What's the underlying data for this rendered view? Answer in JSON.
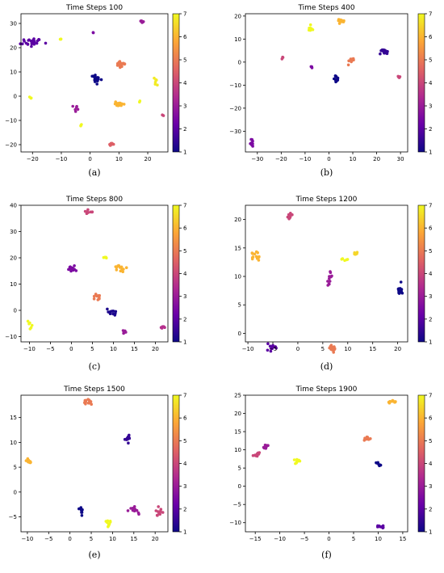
{
  "colormap": {
    "name": "plasma",
    "stops": [
      "#0d0887",
      "#6a00a8",
      "#b12a90",
      "#e16462",
      "#fca636",
      "#f0f921"
    ]
  },
  "chart_data": [
    {
      "type": "scatter",
      "title": "Time Steps 100",
      "caption": "(a)",
      "xlim": [
        -24,
        27
      ],
      "ylim": [
        -23,
        34
      ],
      "xticks": [
        -20,
        -10,
        0,
        10,
        20
      ],
      "yticks": [
        -20,
        -10,
        0,
        10,
        20,
        30
      ],
      "colorbar": {
        "min": 1,
        "max": 7,
        "ticks": [
          1,
          2,
          3,
          4,
          5,
          6,
          7
        ]
      },
      "clusters": [
        {
          "x": -20,
          "y": 22.5,
          "c": 2,
          "n": 26,
          "sx": 1.6,
          "sy": 1.0
        },
        {
          "x": 2,
          "y": 7,
          "c": 1,
          "n": 26,
          "sx": 1.0,
          "sy": 0.8
        },
        {
          "x": 10.5,
          "y": 13,
          "c": 5,
          "n": 22,
          "sx": 0.6,
          "sy": 0.6
        },
        {
          "x": 10,
          "y": -3,
          "c": 6,
          "n": 20,
          "sx": 0.9,
          "sy": 0.5
        },
        {
          "x": 7.5,
          "y": -19.5,
          "c": 4.5,
          "n": 8,
          "sx": 0.4,
          "sy": 0.3
        },
        {
          "x": 18,
          "y": 31,
          "c": 3,
          "n": 8,
          "sx": 0.5,
          "sy": 0.5
        },
        {
          "x": -10,
          "y": 23.5,
          "c": 7,
          "n": 3,
          "sx": 0.2,
          "sy": 0.2
        },
        {
          "x": 1.5,
          "y": 26.5,
          "c": 2.5,
          "n": 2,
          "sx": 0.2,
          "sy": 0.2
        },
        {
          "x": -21,
          "y": -0.5,
          "c": 7,
          "n": 3,
          "sx": 0.2,
          "sy": 0.3
        },
        {
          "x": -5,
          "y": -6,
          "c": 3,
          "n": 6,
          "sx": 0.5,
          "sy": 1.0
        },
        {
          "x": -3,
          "y": -12,
          "c": 7,
          "n": 3,
          "sx": 0.2,
          "sy": 0.2
        },
        {
          "x": 23,
          "y": 6,
          "c": 6.8,
          "n": 6,
          "sx": 0.5,
          "sy": 1.5
        },
        {
          "x": 17,
          "y": -2,
          "c": 7,
          "n": 2,
          "sx": 0.2,
          "sy": 0.2
        },
        {
          "x": 25.5,
          "y": -8,
          "c": 4,
          "n": 2,
          "sx": 0.2,
          "sy": 0.2
        }
      ]
    },
    {
      "type": "scatter",
      "title": "Time Steps 400",
      "caption": "(b)",
      "xlim": [
        -35,
        33
      ],
      "ylim": [
        -39,
        21
      ],
      "xticks": [
        -30,
        -20,
        -10,
        0,
        10,
        20,
        30
      ],
      "yticks": [
        -30,
        -20,
        -10,
        0,
        10,
        20
      ],
      "colorbar": {
        "min": 1,
        "max": 7,
        "ticks": [
          1,
          2,
          3,
          4,
          5,
          6,
          7
        ]
      },
      "clusters": [
        {
          "x": -7.5,
          "y": 14,
          "c": 7,
          "n": 12,
          "sx": 0.6,
          "sy": 1.3
        },
        {
          "x": 5,
          "y": 18,
          "c": 6,
          "n": 14,
          "sx": 0.9,
          "sy": 0.4
        },
        {
          "x": 23,
          "y": 4.5,
          "c": 1.5,
          "n": 18,
          "sx": 0.8,
          "sy": 0.6
        },
        {
          "x": 9.5,
          "y": 0.5,
          "c": 5,
          "n": 12,
          "sx": 0.7,
          "sy": 0.6
        },
        {
          "x": 3,
          "y": -7,
          "c": 1,
          "n": 14,
          "sx": 0.5,
          "sy": 0.8
        },
        {
          "x": -19.5,
          "y": 2,
          "c": 4,
          "n": 3,
          "sx": 0.2,
          "sy": 0.2
        },
        {
          "x": -7,
          "y": -2,
          "c": 2.5,
          "n": 3,
          "sx": 0.3,
          "sy": 0.2
        },
        {
          "x": 29.5,
          "y": -6.5,
          "c": 4,
          "n": 4,
          "sx": 0.3,
          "sy": 0.2
        },
        {
          "x": -32.5,
          "y": -35.5,
          "c": 2.5,
          "n": 10,
          "sx": 0.4,
          "sy": 1.0
        }
      ]
    },
    {
      "type": "scatter",
      "title": "Time Steps 800",
      "caption": "(c)",
      "xlim": [
        -12,
        23
      ],
      "ylim": [
        -12,
        40
      ],
      "xticks": [
        -10,
        -5,
        0,
        5,
        10,
        15,
        20
      ],
      "yticks": [
        -10,
        0,
        10,
        20,
        30,
        40
      ],
      "colorbar": {
        "min": 1,
        "max": 7,
        "ticks": [
          1,
          2,
          3,
          4,
          5,
          6,
          7
        ]
      },
      "clusters": [
        {
          "x": 4.5,
          "y": 37.5,
          "c": 4,
          "n": 10,
          "sx": 0.5,
          "sy": 0.4
        },
        {
          "x": 0,
          "y": 16,
          "c": 2.5,
          "n": 16,
          "sx": 0.6,
          "sy": 0.6
        },
        {
          "x": 8,
          "y": 20,
          "c": 7,
          "n": 4,
          "sx": 0.3,
          "sy": 0.3
        },
        {
          "x": 11.5,
          "y": 16,
          "c": 6,
          "n": 14,
          "sx": 0.6,
          "sy": 0.6
        },
        {
          "x": 6,
          "y": 5,
          "c": 5,
          "n": 12,
          "sx": 0.4,
          "sy": 0.8
        },
        {
          "x": 9.5,
          "y": -0.8,
          "c": 1.2,
          "n": 12,
          "sx": 0.8,
          "sy": 0.6
        },
        {
          "x": 12.5,
          "y": -8,
          "c": 3,
          "n": 6,
          "sx": 0.3,
          "sy": 0.6
        },
        {
          "x": 21.5,
          "y": -6.5,
          "c": 3.5,
          "n": 6,
          "sx": 0.5,
          "sy": 0.3
        },
        {
          "x": -10,
          "y": -6,
          "c": 7,
          "n": 6,
          "sx": 0.3,
          "sy": 0.8
        }
      ]
    },
    {
      "type": "scatter",
      "title": "Time Steps 1200",
      "caption": "(d)",
      "xlim": [
        -10.5,
        22
      ],
      "ylim": [
        -1.5,
        22.5
      ],
      "xticks": [
        -10,
        -5,
        0,
        5,
        10,
        15,
        20
      ],
      "yticks": [
        0,
        5,
        10,
        15,
        20
      ],
      "colorbar": {
        "min": 1,
        "max": 7,
        "ticks": [
          1,
          2,
          3,
          4,
          5,
          6,
          7
        ]
      },
      "clusters": [
        {
          "x": -1.5,
          "y": 20.7,
          "c": 4,
          "n": 12,
          "sx": 0.35,
          "sy": 0.3
        },
        {
          "x": -8.5,
          "y": 13.5,
          "c": 6,
          "n": 14,
          "sx": 0.4,
          "sy": 0.35
        },
        {
          "x": 9.5,
          "y": 13,
          "c": 7,
          "n": 5,
          "sx": 0.4,
          "sy": 0.2
        },
        {
          "x": 11.5,
          "y": 14,
          "c": 6.5,
          "n": 6,
          "sx": 0.3,
          "sy": 0.2
        },
        {
          "x": 6.5,
          "y": 9,
          "c": 3,
          "n": 12,
          "sx": 0.3,
          "sy": 1.0
        },
        {
          "x": 20.5,
          "y": 7.5,
          "c": 1,
          "n": 12,
          "sx": 0.3,
          "sy": 0.6
        },
        {
          "x": -5.5,
          "y": -2.5,
          "c": 2,
          "n": 12,
          "sx": 0.5,
          "sy": 0.3
        },
        {
          "x": 6.8,
          "y": -2.5,
          "c": 5,
          "n": 14,
          "sx": 0.5,
          "sy": 0.25
        }
      ]
    },
    {
      "type": "scatter",
      "title": "Time Steps 1500",
      "caption": "(e)",
      "xlim": [
        -11.5,
        23
      ],
      "ylim": [
        -8,
        19.5
      ],
      "xticks": [
        -10,
        -5,
        0,
        5,
        10,
        15,
        20
      ],
      "yticks": [
        -5,
        0,
        5,
        10,
        15
      ],
      "colorbar": {
        "min": 1,
        "max": 7,
        "ticks": [
          1,
          2,
          3,
          4,
          5,
          6,
          7
        ]
      },
      "clusters": [
        {
          "x": 3.8,
          "y": 18.2,
          "c": 5,
          "n": 14,
          "sx": 0.5,
          "sy": 0.3
        },
        {
          "x": -9.5,
          "y": 6.3,
          "c": 6,
          "n": 10,
          "sx": 0.35,
          "sy": 0.3
        },
        {
          "x": 13.5,
          "y": 10.8,
          "c": 1.5,
          "n": 14,
          "sx": 0.4,
          "sy": 0.3
        },
        {
          "x": 2.8,
          "y": -3.8,
          "c": 1,
          "n": 10,
          "sx": 0.2,
          "sy": 0.6
        },
        {
          "x": 9,
          "y": -6,
          "c": 7,
          "n": 10,
          "sx": 0.3,
          "sy": 0.7
        },
        {
          "x": 15,
          "y": -3.5,
          "c": 3,
          "n": 12,
          "sx": 0.8,
          "sy": 0.3
        },
        {
          "x": 20.8,
          "y": -4.2,
          "c": 4,
          "n": 12,
          "sx": 0.4,
          "sy": 0.5
        }
      ]
    },
    {
      "type": "scatter",
      "title": "Time Steps 1900",
      "caption": "(f)",
      "xlim": [
        -17,
        16
      ],
      "ylim": [
        -12.5,
        25
      ],
      "xticks": [
        -15,
        -10,
        -5,
        0,
        5,
        10,
        15
      ],
      "yticks": [
        -10,
        -5,
        0,
        5,
        10,
        15,
        20,
        25
      ],
      "colorbar": {
        "min": 1,
        "max": 7,
        "ticks": [
          1,
          2,
          3,
          4,
          5,
          6,
          7
        ]
      },
      "clusters": [
        {
          "x": 13,
          "y": 23.2,
          "c": 6,
          "n": 12,
          "sx": 0.5,
          "sy": 0.25
        },
        {
          "x": 7.8,
          "y": 13,
          "c": 5,
          "n": 10,
          "sx": 0.4,
          "sy": 0.25
        },
        {
          "x": -13,
          "y": 11,
          "c": 3,
          "n": 8,
          "sx": 0.4,
          "sy": 0.4
        },
        {
          "x": -14.8,
          "y": 8.6,
          "c": 4,
          "n": 10,
          "sx": 0.35,
          "sy": 0.25
        },
        {
          "x": -6.5,
          "y": 7,
          "c": 7,
          "n": 8,
          "sx": 0.4,
          "sy": 0.35
        },
        {
          "x": 10,
          "y": 6,
          "c": 1,
          "n": 8,
          "sx": 0.35,
          "sy": 0.35
        },
        {
          "x": 10.5,
          "y": -11,
          "c": 2,
          "n": 10,
          "sx": 0.4,
          "sy": 0.25
        }
      ]
    }
  ]
}
